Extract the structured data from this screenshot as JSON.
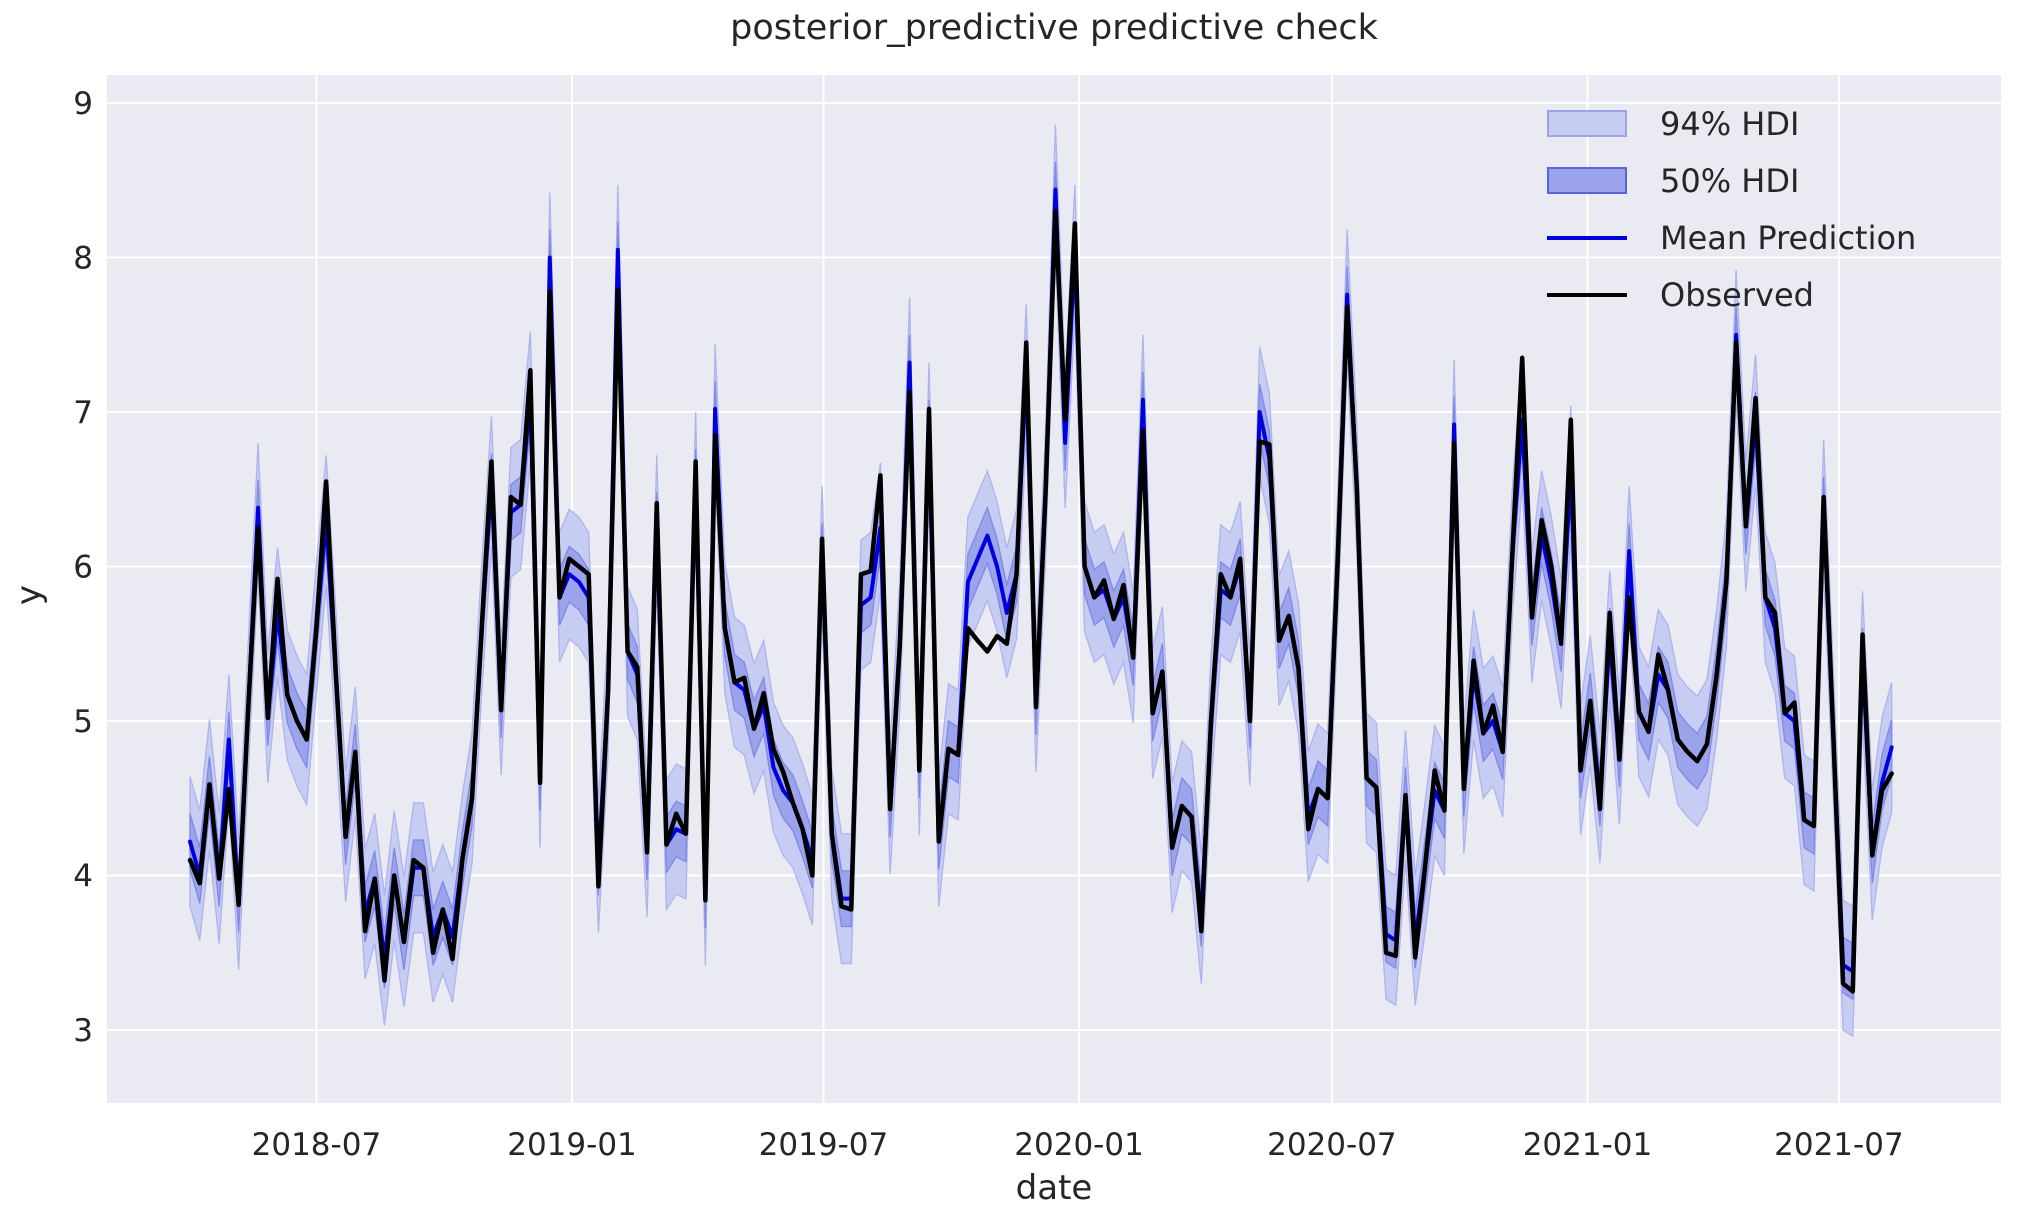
{
  "title": "posterior_predictive predictive check",
  "colors": {
    "figure_background": "#ffffff",
    "axes_background": "#eaeaf2",
    "grid": "#ffffff",
    "text": "#262626",
    "observed": "#000000",
    "mean_prediction": "#0000dd",
    "hdi94_fill": "#c7ccf2",
    "hdi94_edge": "#aeb4ed",
    "hdi50_fill": "#9ba3ea",
    "hdi50_edge": "#7f88e6"
  },
  "legend": {
    "items": [
      {
        "label": "94% HDI",
        "swatch": "patch",
        "fill": "#c7ccf2",
        "edge": "#9ba3ea"
      },
      {
        "label": "50% HDI",
        "swatch": "patch",
        "fill": "#9ba3ea",
        "edge": "#5a63d8"
      },
      {
        "label": "Mean Prediction",
        "swatch": "line",
        "color": "#0000dd"
      },
      {
        "label": "Observed",
        "swatch": "line",
        "color": "#000000"
      }
    ]
  },
  "chart_data": {
    "type": "line",
    "title": "posterior_predictive predictive check",
    "xlabel": "date",
    "ylabel": "y",
    "grid": true,
    "legend_position": "upper right",
    "x_start_date": "2018-04-01",
    "x_step_days": 7,
    "x_ticks": [
      {
        "label": "2018-07",
        "date": "2018-07-01"
      },
      {
        "label": "2019-01",
        "date": "2019-01-01"
      },
      {
        "label": "2019-07",
        "date": "2019-07-01"
      },
      {
        "label": "2020-01",
        "date": "2020-01-01"
      },
      {
        "label": "2020-07",
        "date": "2020-07-01"
      },
      {
        "label": "2021-01",
        "date": "2021-01-01"
      },
      {
        "label": "2021-07",
        "date": "2021-07-01"
      }
    ],
    "y_ticks": [
      3,
      4,
      5,
      6,
      7,
      8,
      9
    ],
    "ylim": [
      2.55,
      9.18
    ],
    "series": [
      {
        "name": "Observed",
        "type": "line",
        "color": "#000000",
        "values": [
          4.1,
          3.95,
          4.59,
          3.98,
          4.56,
          3.81,
          5.1,
          6.25,
          5.02,
          5.92,
          5.17,
          5.0,
          4.88,
          5.6,
          6.55,
          5.3,
          4.25,
          4.8,
          3.64,
          3.98,
          3.32,
          4.0,
          3.57,
          4.1,
          4.05,
          3.5,
          3.78,
          3.46,
          4.1,
          4.5,
          5.6,
          6.68,
          5.07,
          6.45,
          6.4,
          7.27,
          4.6,
          7.78,
          5.8,
          6.05,
          6.0,
          5.95,
          3.93,
          5.2,
          7.79,
          5.45,
          5.35,
          4.15,
          6.41,
          4.2,
          4.4,
          4.27,
          6.68,
          3.84,
          6.85,
          5.6,
          5.25,
          5.28,
          4.95,
          5.18,
          4.82,
          4.67,
          4.47,
          4.3,
          4.0,
          6.18,
          4.27,
          3.8,
          3.78,
          5.95,
          5.97,
          6.59,
          4.43,
          5.5,
          7.13,
          4.68,
          7.02,
          4.22,
          4.82,
          4.78,
          5.6,
          5.52,
          5.45,
          5.55,
          5.5,
          5.95,
          7.45,
          5.09,
          6.5,
          8.3,
          6.95,
          8.22,
          6.0,
          5.8,
          5.91,
          5.66,
          5.88,
          5.41,
          6.88,
          5.05,
          5.32,
          4.18,
          4.45,
          4.38,
          3.64,
          5.0,
          5.95,
          5.8,
          6.05,
          5.0,
          6.81,
          6.79,
          5.52,
          5.68,
          5.34,
          4.3,
          4.56,
          4.5,
          6.0,
          7.68,
          6.5,
          4.63,
          4.57,
          3.5,
          3.48,
          4.52,
          3.47,
          4.05,
          4.68,
          4.42,
          6.8,
          4.56,
          5.39,
          4.92,
          5.1,
          4.8,
          6.1,
          7.35,
          5.67,
          6.3,
          6.0,
          5.5,
          6.95,
          4.68,
          5.13,
          4.43,
          5.7,
          4.75,
          5.8,
          5.06,
          4.93,
          5.43,
          5.2,
          4.88,
          4.8,
          4.74,
          4.85,
          5.3,
          5.9,
          7.45,
          6.26,
          7.09,
          5.8,
          5.7,
          5.05,
          5.12,
          4.36,
          4.32,
          6.45,
          4.9,
          3.3,
          3.25,
          5.56,
          4.13,
          4.55,
          4.66
        ]
      },
      {
        "name": "Mean Prediction",
        "type": "line",
        "color": "#0000dd",
        "values": [
          4.22,
          4.0,
          4.59,
          3.98,
          4.88,
          3.81,
          5.1,
          6.38,
          5.02,
          5.7,
          5.17,
          5.0,
          4.88,
          5.6,
          6.3,
          5.3,
          4.25,
          4.8,
          3.75,
          3.98,
          3.45,
          4.0,
          3.57,
          4.05,
          4.05,
          3.6,
          3.78,
          3.6,
          4.1,
          4.5,
          5.6,
          6.55,
          5.07,
          6.35,
          6.4,
          7.1,
          4.6,
          8.0,
          5.8,
          5.95,
          5.9,
          5.8,
          4.05,
          5.2,
          8.05,
          5.45,
          5.3,
          4.15,
          6.3,
          4.2,
          4.3,
          4.27,
          6.58,
          3.84,
          7.02,
          5.6,
          5.25,
          5.2,
          4.95,
          5.1,
          4.7,
          4.55,
          4.47,
          4.3,
          4.1,
          6.1,
          4.27,
          3.85,
          3.85,
          5.75,
          5.8,
          6.25,
          4.43,
          5.5,
          7.32,
          4.68,
          6.9,
          4.22,
          4.82,
          4.78,
          5.9,
          6.05,
          6.2,
          6.0,
          5.7,
          5.95,
          7.28,
          5.09,
          6.5,
          8.44,
          6.8,
          8.05,
          6.0,
          5.8,
          5.85,
          5.66,
          5.8,
          5.41,
          7.08,
          5.05,
          5.32,
          4.18,
          4.45,
          4.38,
          3.72,
          5.0,
          5.85,
          5.8,
          6.0,
          5.0,
          7.0,
          6.7,
          5.52,
          5.68,
          5.34,
          4.38,
          4.56,
          4.5,
          6.0,
          7.76,
          6.5,
          4.63,
          4.57,
          3.62,
          3.58,
          4.52,
          3.58,
          4.05,
          4.55,
          4.42,
          6.92,
          4.56,
          5.3,
          4.92,
          5.0,
          4.8,
          6.1,
          6.95,
          5.67,
          6.2,
          5.9,
          5.5,
          6.62,
          4.68,
          5.13,
          4.5,
          5.55,
          4.75,
          6.1,
          5.06,
          4.93,
          5.3,
          5.2,
          4.88,
          4.8,
          4.74,
          4.85,
          5.3,
          5.9,
          7.5,
          6.26,
          6.95,
          5.8,
          5.6,
          5.05,
          5.0,
          4.36,
          4.32,
          6.4,
          4.9,
          3.42,
          3.38,
          5.42,
          4.13,
          4.6,
          4.83
        ]
      },
      {
        "name": "94% HDI",
        "type": "band",
        "around": "Mean Prediction",
        "halfwidth": 0.42,
        "fill": "#c7ccf2",
        "edge": "#aeb4ed"
      },
      {
        "name": "50% HDI",
        "type": "band",
        "around": "Mean Prediction",
        "halfwidth": 0.18,
        "fill": "#9ba3ea",
        "edge": "#7f88e6"
      }
    ]
  }
}
